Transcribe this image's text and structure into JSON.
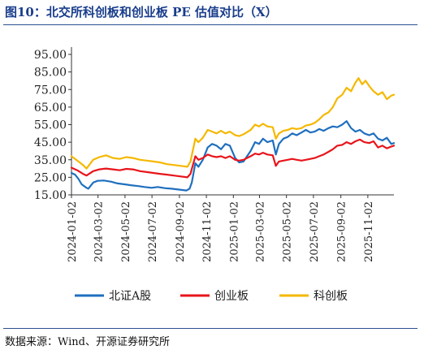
{
  "title": "图10：北交所科创板和创业板 PE 估值对比（X）",
  "source": "数据来源：Wind、开源证券研究所",
  "colors": {
    "北证A股": "#1f6fbf",
    "创业板": "#e8141b",
    "科创板": "#f5b800",
    "header": "#1a3e8c"
  },
  "chart_data": {
    "type": "line",
    "title": "",
    "xlabel": "",
    "ylabel": "",
    "ylim": [
      15,
      95
    ],
    "yticks": [
      "95.00",
      "85.00",
      "75.00",
      "65.00",
      "55.00",
      "45.00",
      "35.00",
      "25.00",
      "15.00"
    ],
    "xticks": [
      "2024-01-02",
      "2024-03-02",
      "2024-05-02",
      "2024-07-02",
      "2024-09-02",
      "2024-11-02",
      "2025-01-02",
      "2025-03-02",
      "2025-05-02",
      "2025-07-02",
      "2025-09-02",
      "2025-11-02"
    ],
    "xlim": [
      "2024-01-02",
      "2025-12-31"
    ],
    "legend_position": "bottom",
    "grid": false,
    "series": [
      {
        "name": "北证A股",
        "points": [
          [
            "2024-01-02",
            27.5
          ],
          [
            "2024-01-10",
            26.5
          ],
          [
            "2024-01-18",
            24.0
          ],
          [
            "2024-01-25",
            21.0
          ],
          [
            "2024-02-05",
            19.0
          ],
          [
            "2024-02-09",
            18.5
          ],
          [
            "2024-02-20",
            22.0
          ],
          [
            "2024-03-01",
            23.0
          ],
          [
            "2024-03-15",
            23.2
          ],
          [
            "2024-04-01",
            22.5
          ],
          [
            "2024-04-15",
            21.5
          ],
          [
            "2024-05-01",
            21.0
          ],
          [
            "2024-05-15",
            20.5
          ],
          [
            "2024-06-01",
            20.0
          ],
          [
            "2024-06-15",
            19.5
          ],
          [
            "2024-07-01",
            19.0
          ],
          [
            "2024-07-15",
            19.5
          ],
          [
            "2024-08-01",
            18.8
          ],
          [
            "2024-08-15",
            18.5
          ],
          [
            "2024-09-01",
            18.0
          ],
          [
            "2024-09-18",
            17.5
          ],
          [
            "2024-09-25",
            18.5
          ],
          [
            "2024-09-30",
            22.0
          ],
          [
            "2024-10-08",
            33.0
          ],
          [
            "2024-10-15",
            31.0
          ],
          [
            "2024-10-25",
            35.0
          ],
          [
            "2024-11-05",
            42.0
          ],
          [
            "2024-11-15",
            44.0
          ],
          [
            "2024-11-25",
            43.0
          ],
          [
            "2024-12-05",
            41.0
          ],
          [
            "2024-12-15",
            44.0
          ],
          [
            "2024-12-25",
            43.0
          ],
          [
            "2025-01-06",
            36.0
          ],
          [
            "2025-01-15",
            33.5
          ],
          [
            "2025-01-25",
            34.0
          ],
          [
            "2025-02-10",
            40.0
          ],
          [
            "2025-02-20",
            45.0
          ],
          [
            "2025-03-01",
            44.0
          ],
          [
            "2025-03-10",
            47.0
          ],
          [
            "2025-03-20",
            45.0
          ],
          [
            "2025-04-01",
            46.0
          ],
          [
            "2025-04-08",
            38.0
          ],
          [
            "2025-04-15",
            44.0
          ],
          [
            "2025-04-25",
            47.0
          ],
          [
            "2025-05-05",
            48.0
          ],
          [
            "2025-05-15",
            50.0
          ],
          [
            "2025-05-25",
            49.0
          ],
          [
            "2025-06-05",
            50.5
          ],
          [
            "2025-06-15",
            52.0
          ],
          [
            "2025-06-25",
            50.5
          ],
          [
            "2025-07-05",
            51.0
          ],
          [
            "2025-07-15",
            52.5
          ],
          [
            "2025-07-25",
            51.5
          ],
          [
            "2025-08-05",
            53.0
          ],
          [
            "2025-08-15",
            54.0
          ],
          [
            "2025-08-25",
            53.5
          ],
          [
            "2025-09-05",
            55.0
          ],
          [
            "2025-09-15",
            57.0
          ],
          [
            "2025-09-25",
            53.0
          ],
          [
            "2025-10-05",
            51.0
          ],
          [
            "2025-10-15",
            52.0
          ],
          [
            "2025-10-25",
            50.0
          ],
          [
            "2025-11-05",
            49.0
          ],
          [
            "2025-11-15",
            50.0
          ],
          [
            "2025-11-25",
            47.0
          ],
          [
            "2025-12-05",
            46.0
          ],
          [
            "2025-12-15",
            47.5
          ],
          [
            "2025-12-25",
            44.0
          ],
          [
            "2025-12-31",
            44.5
          ]
        ]
      },
      {
        "name": "创业板",
        "points": [
          [
            "2024-01-02",
            30.5
          ],
          [
            "2024-01-15",
            29.0
          ],
          [
            "2024-01-28",
            27.0
          ],
          [
            "2024-02-05",
            26.0
          ],
          [
            "2024-02-20",
            28.5
          ],
          [
            "2024-03-05",
            29.5
          ],
          [
            "2024-03-20",
            30.0
          ],
          [
            "2024-04-05",
            29.5
          ],
          [
            "2024-04-20",
            29.0
          ],
          [
            "2024-05-05",
            29.8
          ],
          [
            "2024-05-20",
            29.5
          ],
          [
            "2024-06-05",
            28.5
          ],
          [
            "2024-06-20",
            28.0
          ],
          [
            "2024-07-05",
            27.5
          ],
          [
            "2024-07-20",
            27.0
          ],
          [
            "2024-08-05",
            26.5
          ],
          [
            "2024-08-20",
            26.0
          ],
          [
            "2024-09-05",
            25.5
          ],
          [
            "2024-09-20",
            25.0
          ],
          [
            "2024-09-27",
            27.0
          ],
          [
            "2024-10-08",
            37.0
          ],
          [
            "2024-10-15",
            35.0
          ],
          [
            "2024-10-25",
            36.0
          ],
          [
            "2024-11-05",
            38.0
          ],
          [
            "2024-11-15",
            37.0
          ],
          [
            "2024-11-25",
            36.5
          ],
          [
            "2024-12-05",
            37.0
          ],
          [
            "2024-12-15",
            36.0
          ],
          [
            "2024-12-25",
            37.0
          ],
          [
            "2025-01-06",
            35.0
          ],
          [
            "2025-01-15",
            34.5
          ],
          [
            "2025-01-25",
            35.0
          ],
          [
            "2025-02-10",
            37.0
          ],
          [
            "2025-02-20",
            38.5
          ],
          [
            "2025-03-01",
            38.0
          ],
          [
            "2025-03-10",
            39.0
          ],
          [
            "2025-03-20",
            38.0
          ],
          [
            "2025-04-01",
            37.5
          ],
          [
            "2025-04-08",
            31.5
          ],
          [
            "2025-04-15",
            34.0
          ],
          [
            "2025-04-25",
            34.5
          ],
          [
            "2025-05-05",
            35.0
          ],
          [
            "2025-05-15",
            35.5
          ],
          [
            "2025-05-25",
            35.0
          ],
          [
            "2025-06-05",
            34.5
          ],
          [
            "2025-06-15",
            35.0
          ],
          [
            "2025-06-25",
            35.5
          ],
          [
            "2025-07-05",
            36.0
          ],
          [
            "2025-07-15",
            37.0
          ],
          [
            "2025-07-25",
            38.0
          ],
          [
            "2025-08-05",
            39.5
          ],
          [
            "2025-08-15",
            41.0
          ],
          [
            "2025-08-25",
            43.0
          ],
          [
            "2025-09-05",
            43.5
          ],
          [
            "2025-09-15",
            45.0
          ],
          [
            "2025-09-25",
            44.0
          ],
          [
            "2025-10-05",
            45.5
          ],
          [
            "2025-10-15",
            46.5
          ],
          [
            "2025-10-25",
            45.0
          ],
          [
            "2025-11-05",
            44.5
          ],
          [
            "2025-11-15",
            45.5
          ],
          [
            "2025-11-25",
            42.0
          ],
          [
            "2025-12-05",
            43.0
          ],
          [
            "2025-12-15",
            41.5
          ],
          [
            "2025-12-25",
            42.5
          ],
          [
            "2025-12-31",
            43.0
          ]
        ]
      },
      {
        "name": "科创板",
        "points": [
          [
            "2024-01-02",
            37.0
          ],
          [
            "2024-01-15",
            34.5
          ],
          [
            "2024-01-28",
            32.0
          ],
          [
            "2024-02-05",
            30.0
          ],
          [
            "2024-02-20",
            35.0
          ],
          [
            "2024-03-05",
            36.5
          ],
          [
            "2024-03-20",
            37.5
          ],
          [
            "2024-04-05",
            36.0
          ],
          [
            "2024-04-20",
            35.5
          ],
          [
            "2024-05-05",
            36.5
          ],
          [
            "2024-05-20",
            36.0
          ],
          [
            "2024-06-05",
            35.0
          ],
          [
            "2024-06-20",
            34.5
          ],
          [
            "2024-07-05",
            34.0
          ],
          [
            "2024-07-20",
            33.5
          ],
          [
            "2024-08-05",
            32.5
          ],
          [
            "2024-08-20",
            32.0
          ],
          [
            "2024-09-05",
            31.5
          ],
          [
            "2024-09-20",
            31.0
          ],
          [
            "2024-09-27",
            34.0
          ],
          [
            "2024-10-08",
            47.0
          ],
          [
            "2024-10-15",
            45.0
          ],
          [
            "2024-10-25",
            47.5
          ],
          [
            "2024-11-05",
            52.0
          ],
          [
            "2024-11-15",
            51.0
          ],
          [
            "2024-11-25",
            50.0
          ],
          [
            "2024-12-05",
            51.5
          ],
          [
            "2024-12-15",
            50.0
          ],
          [
            "2024-12-25",
            51.0
          ],
          [
            "2025-01-06",
            49.0
          ],
          [
            "2025-01-15",
            48.5
          ],
          [
            "2025-01-25",
            49.5
          ],
          [
            "2025-02-10",
            52.0
          ],
          [
            "2025-02-20",
            55.0
          ],
          [
            "2025-03-01",
            54.0
          ],
          [
            "2025-03-10",
            55.5
          ],
          [
            "2025-03-20",
            54.0
          ],
          [
            "2025-04-01",
            53.5
          ],
          [
            "2025-04-08",
            47.0
          ],
          [
            "2025-04-15",
            50.0
          ],
          [
            "2025-04-25",
            51.5
          ],
          [
            "2025-05-05",
            52.0
          ],
          [
            "2025-05-15",
            53.0
          ],
          [
            "2025-05-25",
            52.5
          ],
          [
            "2025-06-05",
            53.0
          ],
          [
            "2025-06-15",
            54.5
          ],
          [
            "2025-06-25",
            55.0
          ],
          [
            "2025-07-05",
            56.0
          ],
          [
            "2025-07-15",
            58.0
          ],
          [
            "2025-07-25",
            60.5
          ],
          [
            "2025-08-05",
            62.0
          ],
          [
            "2025-08-15",
            65.0
          ],
          [
            "2025-08-25",
            70.0
          ],
          [
            "2025-09-05",
            72.0
          ],
          [
            "2025-09-15",
            76.0
          ],
          [
            "2025-09-25",
            74.0
          ],
          [
            "2025-10-05",
            79.0
          ],
          [
            "2025-10-12",
            81.5
          ],
          [
            "2025-10-20",
            78.0
          ],
          [
            "2025-10-28",
            80.0
          ],
          [
            "2025-11-05",
            77.0
          ],
          [
            "2025-11-15",
            74.0
          ],
          [
            "2025-11-25",
            72.0
          ],
          [
            "2025-12-05",
            73.5
          ],
          [
            "2025-12-15",
            69.5
          ],
          [
            "2025-12-25",
            71.5
          ],
          [
            "2025-12-31",
            72.0
          ]
        ]
      }
    ]
  }
}
